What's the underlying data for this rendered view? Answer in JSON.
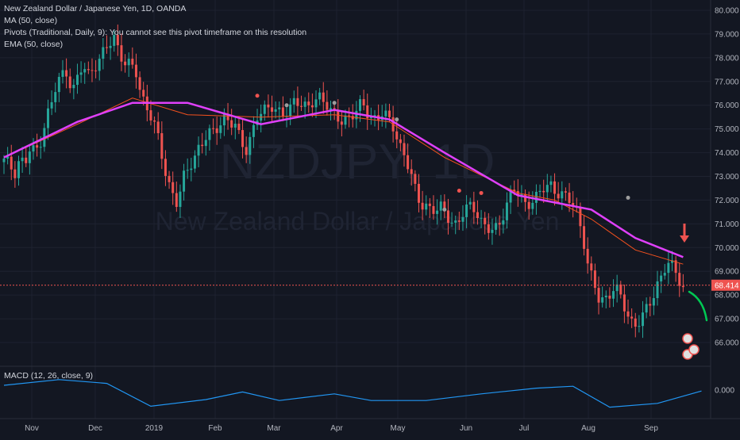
{
  "legend": {
    "line1": "New Zealand Dollar / Japanese Yen, 1D, OANDA",
    "line2": "MA (50, close)",
    "line3": "Pivots (Traditional, Daily, 9): You cannot see this pivot timeframe on this resolution",
    "line4": "EMA (50, close)"
  },
  "watermark": {
    "symbol": "NZDJPY, 1D",
    "name": "New Zealand Dollar / Japanese Yen"
  },
  "macd_legend": "MACD (12, 26, close, 9)",
  "colors": {
    "background": "#131722",
    "up": "#26a69a",
    "down": "#ef5350",
    "ma": "#e040fb",
    "ema": "#f4511e",
    "macd": "#2196f3",
    "arrow_down": "#ef5350",
    "forecast": "#00c853"
  },
  "chart_data": {
    "type": "candlestick",
    "symbol": "NZDJPY",
    "timeframe": "1D",
    "ylim": [
      65.2,
      80.2
    ],
    "yticks": [
      "80.000",
      "79.000",
      "78.000",
      "77.000",
      "76.000",
      "75.000",
      "74.000",
      "73.000",
      "72.000",
      "71.000",
      "70.000",
      "69.000",
      "68.000",
      "67.000",
      "66.000"
    ],
    "last_price": "68.414",
    "xticks": [
      "Nov",
      "Dec",
      "2019",
      "Feb",
      "Mar",
      "Apr",
      "May",
      "Jun",
      "Jul",
      "Aug",
      "Sep"
    ],
    "price_close": [
      73.6,
      73.5,
      73.2,
      73.8,
      73.5,
      74.1,
      74.0,
      74.6,
      75.5,
      76.0,
      76.8,
      77.3,
      77.5,
      76.6,
      77.1,
      77.6,
      77.3,
      77.7,
      77.9,
      78.2,
      78.5,
      78.9,
      78.3,
      77.8,
      77.6,
      77.4,
      76.5,
      76.1,
      75.5,
      74.8,
      73.8,
      72.9,
      72.4,
      71.8,
      72.8,
      73.3,
      73.8,
      74.3,
      74.5,
      74.7,
      74.9,
      75.3,
      75.6,
      75.2,
      75.0,
      74.5,
      74.2,
      74.8,
      75.4,
      75.6,
      75.9,
      76.1,
      75.8,
      75.5,
      75.6,
      76.2,
      76.3,
      76.0,
      75.8,
      76.1,
      76.4,
      76.3,
      75.8,
      75.4,
      75.2,
      75.5,
      75.7,
      75.8,
      76.0,
      75.6,
      75.5,
      75.6,
      75.7,
      75.3,
      75.0,
      74.5,
      74.0,
      73.3,
      72.4,
      71.8,
      71.9,
      71.7,
      71.5,
      71.6,
      71.4,
      71.2,
      71.0,
      71.3,
      71.6,
      71.8,
      71.5,
      71.0,
      70.7,
      70.6,
      71.0,
      71.6,
      72.2,
      72.4,
      72.1,
      71.9,
      72.0,
      72.1,
      72.3,
      72.5,
      72.7,
      72.4,
      72.2,
      72.0,
      71.8,
      71.5,
      70.5,
      69.1,
      68.4,
      67.8,
      67.9,
      68.1,
      68.3,
      67.9,
      67.4,
      67.0,
      66.8,
      66.9,
      67.3,
      67.8,
      68.5,
      68.9,
      69.3,
      69.1,
      68.8,
      68.414
    ],
    "series": [
      {
        "name": "MA (50, close)",
        "points": [
          [
            0,
            73.8
          ],
          [
            20,
            75.3
          ],
          [
            35,
            76.1
          ],
          [
            50,
            76.1
          ],
          [
            70,
            75.2
          ],
          [
            90,
            75.8
          ],
          [
            105,
            75.4
          ],
          [
            120,
            74.0
          ],
          [
            140,
            72.2
          ],
          [
            150,
            71.9
          ],
          [
            160,
            71.6
          ],
          [
            172,
            70.4
          ],
          [
            185,
            69.6
          ]
        ]
      },
      {
        "name": "EMA (50, close)",
        "points": [
          [
            0,
            73.8
          ],
          [
            20,
            75.2
          ],
          [
            35,
            76.3
          ],
          [
            50,
            75.6
          ],
          [
            70,
            75.5
          ],
          [
            90,
            75.6
          ],
          [
            105,
            75.3
          ],
          [
            120,
            73.8
          ],
          [
            140,
            72.3
          ],
          [
            150,
            72.0
          ],
          [
            160,
            71.2
          ],
          [
            172,
            69.9
          ],
          [
            185,
            69.3
          ]
        ]
      },
      {
        "name": "MACD (12, 26, close, 9)",
        "points": [
          [
            0,
            0.25
          ],
          [
            15,
            0.55
          ],
          [
            28,
            0.35
          ],
          [
            40,
            -0.85
          ],
          [
            55,
            -0.5
          ],
          [
            65,
            -0.1
          ],
          [
            75,
            -0.55
          ],
          [
            90,
            -0.2
          ],
          [
            100,
            -0.55
          ],
          [
            115,
            -0.55
          ],
          [
            130,
            -0.2
          ],
          [
            145,
            0.1
          ],
          [
            155,
            0.2
          ],
          [
            165,
            -0.9
          ],
          [
            178,
            -0.7
          ],
          [
            190,
            -0.05
          ]
        ]
      }
    ],
    "macd_ticks": [
      "0.000"
    ]
  }
}
